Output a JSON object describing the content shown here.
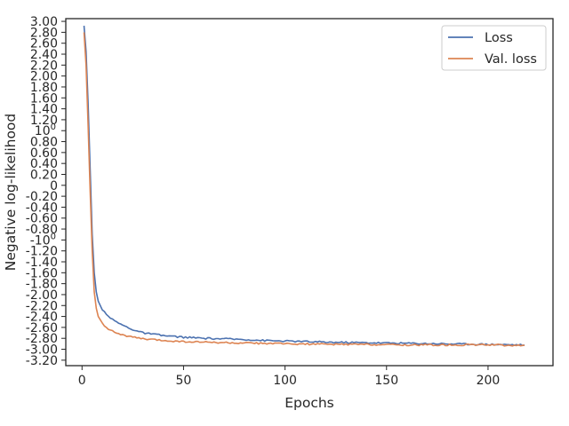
{
  "chart_data": {
    "type": "line",
    "title": "",
    "xlabel": "Epochs",
    "ylabel": "Negative log-likelihood",
    "xlim": [
      -8,
      232
    ],
    "ylim": [
      -3.3,
      3.05
    ],
    "y_scale": "symlog",
    "grid": false,
    "legend_position": "upper right",
    "x_ticks": [
      0,
      50,
      100,
      150,
      200
    ],
    "y_ticks": [
      {
        "v": 3.0,
        "label": "3.00"
      },
      {
        "v": 2.8,
        "label": "2.80"
      },
      {
        "v": 2.6,
        "label": "2.60"
      },
      {
        "v": 2.4,
        "label": "2.40"
      },
      {
        "v": 2.2,
        "label": "2.20"
      },
      {
        "v": 2.0,
        "label": "2.00"
      },
      {
        "v": 1.8,
        "label": "1.80"
      },
      {
        "v": 1.6,
        "label": "1.60"
      },
      {
        "v": 1.4,
        "label": "1.40"
      },
      {
        "v": 1.2,
        "label": "1.20"
      },
      {
        "v": 1.0,
        "label": "10",
        "sup": "0"
      },
      {
        "v": 0.8,
        "label": "0.80"
      },
      {
        "v": 0.6,
        "label": "0.60"
      },
      {
        "v": 0.4,
        "label": "0.40"
      },
      {
        "v": 0.2,
        "label": "0.20"
      },
      {
        "v": 0.0,
        "label": "0"
      },
      {
        "v": -0.2,
        "label": "-0.20"
      },
      {
        "v": -0.4,
        "label": "-0.40"
      },
      {
        "v": -0.6,
        "label": "-0.60"
      },
      {
        "v": -0.8,
        "label": "-0.80"
      },
      {
        "v": -1.0,
        "label": "-10",
        "sup": "0"
      },
      {
        "v": -1.2,
        "label": "-1.20"
      },
      {
        "v": -1.4,
        "label": "-1.40"
      },
      {
        "v": -1.6,
        "label": "-1.60"
      },
      {
        "v": -1.8,
        "label": "-1.80"
      },
      {
        "v": -2.0,
        "label": "-2.00"
      },
      {
        "v": -2.2,
        "label": "-2.20"
      },
      {
        "v": -2.4,
        "label": "-2.40"
      },
      {
        "v": -2.6,
        "label": "-2.60"
      },
      {
        "v": -2.8,
        "label": "-2.80"
      },
      {
        "v": -3.0,
        "label": "-3.00"
      },
      {
        "v": -3.2,
        "label": "-3.20"
      }
    ],
    "series": [
      {
        "name": "Loss",
        "color": "#4c72b0",
        "x": [
          1,
          2,
          3,
          4,
          5,
          6,
          7,
          8,
          10,
          12,
          15,
          20,
          25,
          30,
          40,
          50,
          60,
          70,
          80,
          90,
          100,
          120,
          140,
          160,
          180,
          200,
          218
        ],
        "y": [
          2.92,
          2.45,
          1.5,
          0.3,
          -0.9,
          -1.6,
          -1.95,
          -2.12,
          -2.28,
          -2.35,
          -2.46,
          -2.56,
          -2.64,
          -2.7,
          -2.75,
          -2.78,
          -2.8,
          -2.81,
          -2.82,
          -2.84,
          -2.85,
          -2.87,
          -2.88,
          -2.89,
          -2.9,
          -2.91,
          -2.92
        ]
      },
      {
        "name": "Val. loss",
        "color": "#dd8452",
        "x": [
          1,
          2,
          3,
          4,
          5,
          6,
          7,
          8,
          10,
          12,
          15,
          20,
          25,
          30,
          40,
          50,
          60,
          70,
          80,
          90,
          100,
          120,
          140,
          160,
          180,
          200,
          218
        ],
        "y": [
          2.8,
          2.2,
          1.1,
          -0.1,
          -1.2,
          -1.95,
          -2.25,
          -2.4,
          -2.52,
          -2.6,
          -2.67,
          -2.74,
          -2.78,
          -2.81,
          -2.84,
          -2.86,
          -2.87,
          -2.88,
          -2.89,
          -2.89,
          -2.9,
          -2.91,
          -2.91,
          -2.92,
          -2.92,
          -2.92,
          -2.93
        ]
      }
    ]
  }
}
